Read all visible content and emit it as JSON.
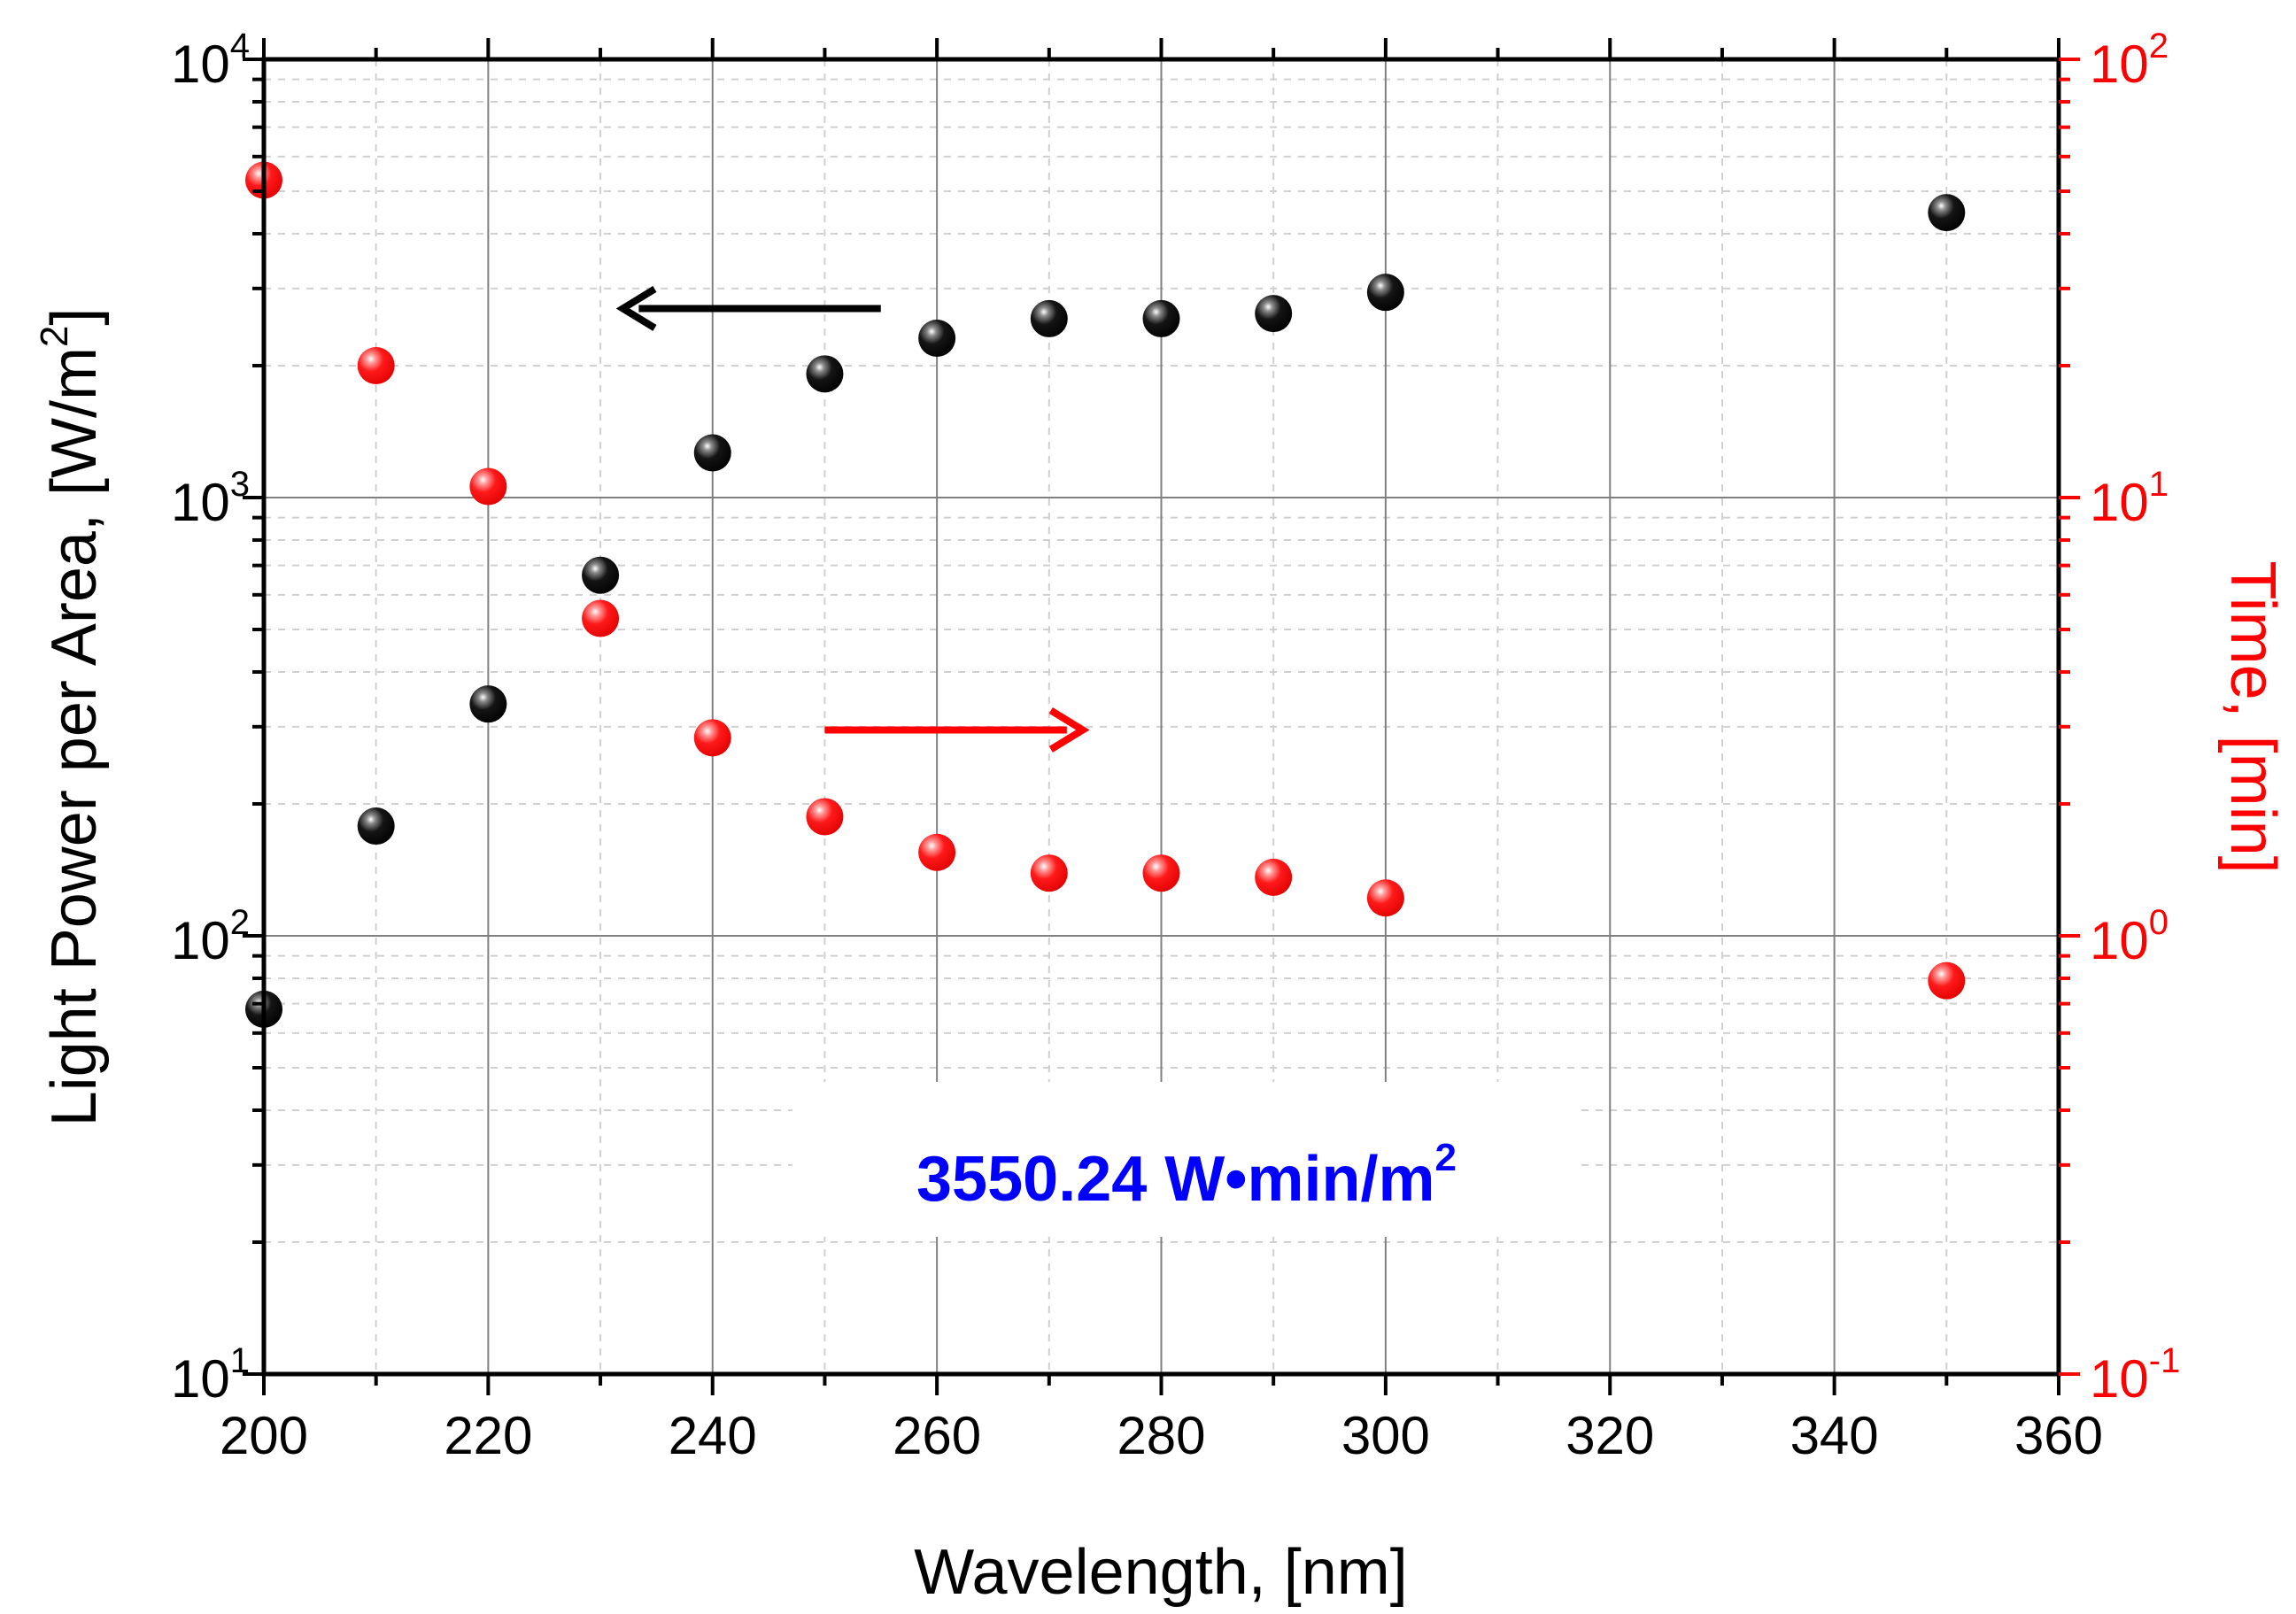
{
  "chart_data": {
    "type": "scatter",
    "title": "",
    "xlabel": "Wavelength, [nm]",
    "ylabel_left": {
      "base": "Light Power per Area, [W/m",
      "sup": "2",
      "end": "]"
    },
    "ylabel_right": "Time, [min]",
    "xlim": [
      200,
      360
    ],
    "xticks": [
      200,
      220,
      240,
      260,
      280,
      300,
      320,
      340,
      360
    ],
    "ylim_left": [
      10,
      10000
    ],
    "ylim_right": [
      0.1,
      100
    ],
    "yscale": "log",
    "grid": true,
    "yticks_left": [
      {
        "base": "10",
        "exp": "1"
      },
      {
        "base": "10",
        "exp": "2"
      },
      {
        "base": "10",
        "exp": "3"
      },
      {
        "base": "10",
        "exp": "4"
      }
    ],
    "yticks_right": [
      {
        "base": "10",
        "exp": "-1"
      },
      {
        "base": "10",
        "exp": "0"
      },
      {
        "base": "10",
        "exp": "1"
      },
      {
        "base": "10",
        "exp": "2"
      }
    ],
    "series": [
      {
        "name": "Light Power per Area",
        "axis": "left",
        "color": "#000000",
        "x": [
          200,
          210,
          220,
          230,
          240,
          250,
          260,
          270,
          280,
          290,
          300,
          350
        ],
        "y": [
          68,
          178,
          338,
          665,
          1265,
          1915,
          2310,
          2560,
          2560,
          2630,
          2940,
          4470
        ]
      },
      {
        "name": "Time",
        "axis": "right",
        "color": "#ff0000",
        "x": [
          200,
          210,
          220,
          230,
          240,
          250,
          260,
          270,
          280,
          290,
          300,
          350
        ],
        "y": [
          53,
          20,
          10.6,
          5.3,
          2.83,
          1.87,
          1.55,
          1.39,
          1.39,
          1.36,
          1.22,
          0.79
        ]
      }
    ],
    "arrows": [
      {
        "color": "#000000",
        "direction": "left",
        "x": [
          255,
          232
        ],
        "y_left": 2700
      },
      {
        "color": "#ff0000",
        "direction": "right",
        "x": [
          250,
          273
        ],
        "y_left": 295
      }
    ],
    "annotation": {
      "text": "3550.24 W•min/m",
      "sup": "2",
      "color": "#0000ff"
    }
  }
}
